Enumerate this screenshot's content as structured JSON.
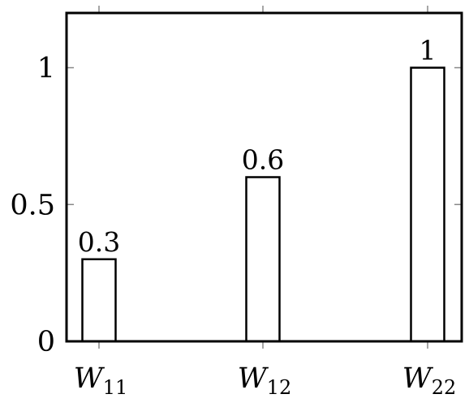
{
  "chart_data": {
    "type": "bar",
    "categories": [
      {
        "main": "W",
        "sub": "11"
      },
      {
        "main": "W",
        "sub": "12"
      },
      {
        "main": "W",
        "sub": "22"
      }
    ],
    "values": [
      0.3,
      0.6,
      1
    ],
    "data_labels": [
      "0.3",
      "0.6",
      "1"
    ],
    "yticks": [
      0,
      0.5,
      1
    ],
    "ytick_labels": [
      "0",
      "0.5",
      "1"
    ],
    "ylim": [
      0,
      1.2
    ],
    "title": "",
    "xlabel": "",
    "ylabel": "",
    "grid": false,
    "bar_fill": "#ffffff",
    "bar_stroke": "#000000",
    "tick_color": "#888888"
  }
}
